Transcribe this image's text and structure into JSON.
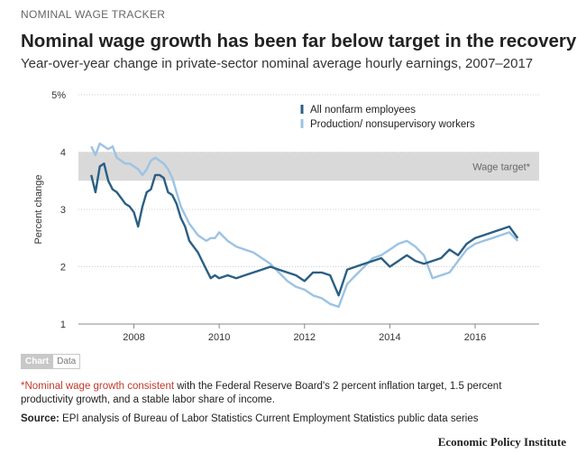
{
  "header": {
    "kicker": "NOMINAL WAGE TRACKER",
    "title": "Nominal wage growth has been far below target in the recovery",
    "subtitle": "Year-over-year change in private-sector nominal average hourly earnings, 2007–2017"
  },
  "toggle": {
    "chart_label": "Chart",
    "data_label": "Data"
  },
  "notes": {
    "footnote_highlight": "*Nominal wage growth consistent",
    "footnote_rest": " with the Federal Reserve Board's 2 percent inflation target, 1.5 percent productivity growth, and a stable labor share of income.",
    "source_label": "Source:",
    "source_text": " EPI analysis of Bureau of Labor Statistics Current Employment Statistics public data series"
  },
  "brand": "Economic Policy Institute",
  "chart_data": {
    "type": "line",
    "title": "Nominal wage growth has been far below target in the recovery",
    "ylabel": "Percent change",
    "xlabel": "",
    "xlim": [
      2006.7,
      2017.5
    ],
    "ylim": [
      1,
      5
    ],
    "y_ticks": [
      1,
      2,
      3,
      4,
      5
    ],
    "y_tick_labels": [
      "1",
      "2",
      "3",
      "4",
      "5%"
    ],
    "x_ticks": [
      2008,
      2010,
      2012,
      2014,
      2016
    ],
    "x_tick_labels": [
      "2008",
      "2010",
      "2012",
      "2014",
      "2016"
    ],
    "grid": "horizontal-dotted",
    "legend_position": "top-center",
    "target_band": {
      "label": "Wage target*",
      "y_range": [
        3.5,
        4.0
      ],
      "color": "#d9d9d9"
    },
    "series": [
      {
        "name": "All nonfarm employees",
        "color": "#2b5f84",
        "x": [
          2007.0,
          2007.1,
          2007.2,
          2007.3,
          2007.4,
          2007.5,
          2007.6,
          2007.7,
          2007.8,
          2007.9,
          2008.0,
          2008.1,
          2008.2,
          2008.3,
          2008.4,
          2008.5,
          2008.6,
          2008.7,
          2008.8,
          2008.9,
          2009.0,
          2009.1,
          2009.2,
          2009.3,
          2009.4,
          2009.5,
          2009.6,
          2009.7,
          2009.8,
          2009.9,
          2010.0,
          2010.2,
          2010.4,
          2010.6,
          2010.8,
          2011.0,
          2011.2,
          2011.4,
          2011.6,
          2011.8,
          2012.0,
          2012.2,
          2012.4,
          2012.6,
          2012.8,
          2013.0,
          2013.2,
          2013.4,
          2013.6,
          2013.8,
          2014.0,
          2014.2,
          2014.4,
          2014.6,
          2014.8,
          2015.0,
          2015.2,
          2015.4,
          2015.6,
          2015.8,
          2016.0,
          2016.2,
          2016.4,
          2016.6,
          2016.8,
          2017.0
        ],
        "y": [
          3.6,
          3.3,
          3.75,
          3.8,
          3.5,
          3.35,
          3.3,
          3.2,
          3.1,
          3.05,
          2.95,
          2.7,
          3.05,
          3.3,
          3.35,
          3.6,
          3.6,
          3.55,
          3.3,
          3.25,
          3.1,
          2.85,
          2.7,
          2.45,
          2.35,
          2.25,
          2.1,
          1.95,
          1.8,
          1.85,
          1.8,
          1.85,
          1.8,
          1.85,
          1.9,
          1.95,
          2.0,
          1.95,
          1.9,
          1.85,
          1.75,
          1.9,
          1.9,
          1.85,
          1.5,
          1.95,
          2.0,
          2.05,
          2.1,
          2.15,
          2.0,
          2.1,
          2.2,
          2.1,
          2.05,
          2.1,
          2.15,
          2.3,
          2.2,
          2.4,
          2.5,
          2.55,
          2.6,
          2.65,
          2.7,
          2.5
        ]
      },
      {
        "name": "Production/ nonsupervisory workers",
        "color": "#9cc3e4",
        "x": [
          2007.0,
          2007.1,
          2007.2,
          2007.3,
          2007.4,
          2007.5,
          2007.6,
          2007.7,
          2007.8,
          2007.9,
          2008.0,
          2008.1,
          2008.2,
          2008.3,
          2008.4,
          2008.5,
          2008.6,
          2008.7,
          2008.8,
          2008.9,
          2009.0,
          2009.1,
          2009.2,
          2009.3,
          2009.4,
          2009.5,
          2009.6,
          2009.7,
          2009.8,
          2009.9,
          2010.0,
          2010.2,
          2010.4,
          2010.6,
          2010.8,
          2011.0,
          2011.2,
          2011.4,
          2011.6,
          2011.8,
          2012.0,
          2012.2,
          2012.4,
          2012.6,
          2012.8,
          2013.0,
          2013.2,
          2013.4,
          2013.6,
          2013.8,
          2014.0,
          2014.2,
          2014.4,
          2014.6,
          2014.8,
          2015.0,
          2015.2,
          2015.4,
          2015.6,
          2015.8,
          2016.0,
          2016.2,
          2016.4,
          2016.6,
          2016.8,
          2017.0
        ],
        "y": [
          4.1,
          3.95,
          4.15,
          4.1,
          4.05,
          4.1,
          3.9,
          3.85,
          3.8,
          3.8,
          3.75,
          3.7,
          3.6,
          3.7,
          3.85,
          3.9,
          3.85,
          3.8,
          3.7,
          3.55,
          3.3,
          3.05,
          2.9,
          2.75,
          2.65,
          2.55,
          2.5,
          2.45,
          2.5,
          2.5,
          2.6,
          2.45,
          2.35,
          2.3,
          2.25,
          2.15,
          2.05,
          1.9,
          1.75,
          1.65,
          1.6,
          1.5,
          1.45,
          1.35,
          1.3,
          1.7,
          1.85,
          2.0,
          2.15,
          2.2,
          2.3,
          2.4,
          2.45,
          2.35,
          2.2,
          1.8,
          1.85,
          1.9,
          2.1,
          2.3,
          2.4,
          2.45,
          2.5,
          2.55,
          2.6,
          2.45
        ]
      }
    ]
  }
}
